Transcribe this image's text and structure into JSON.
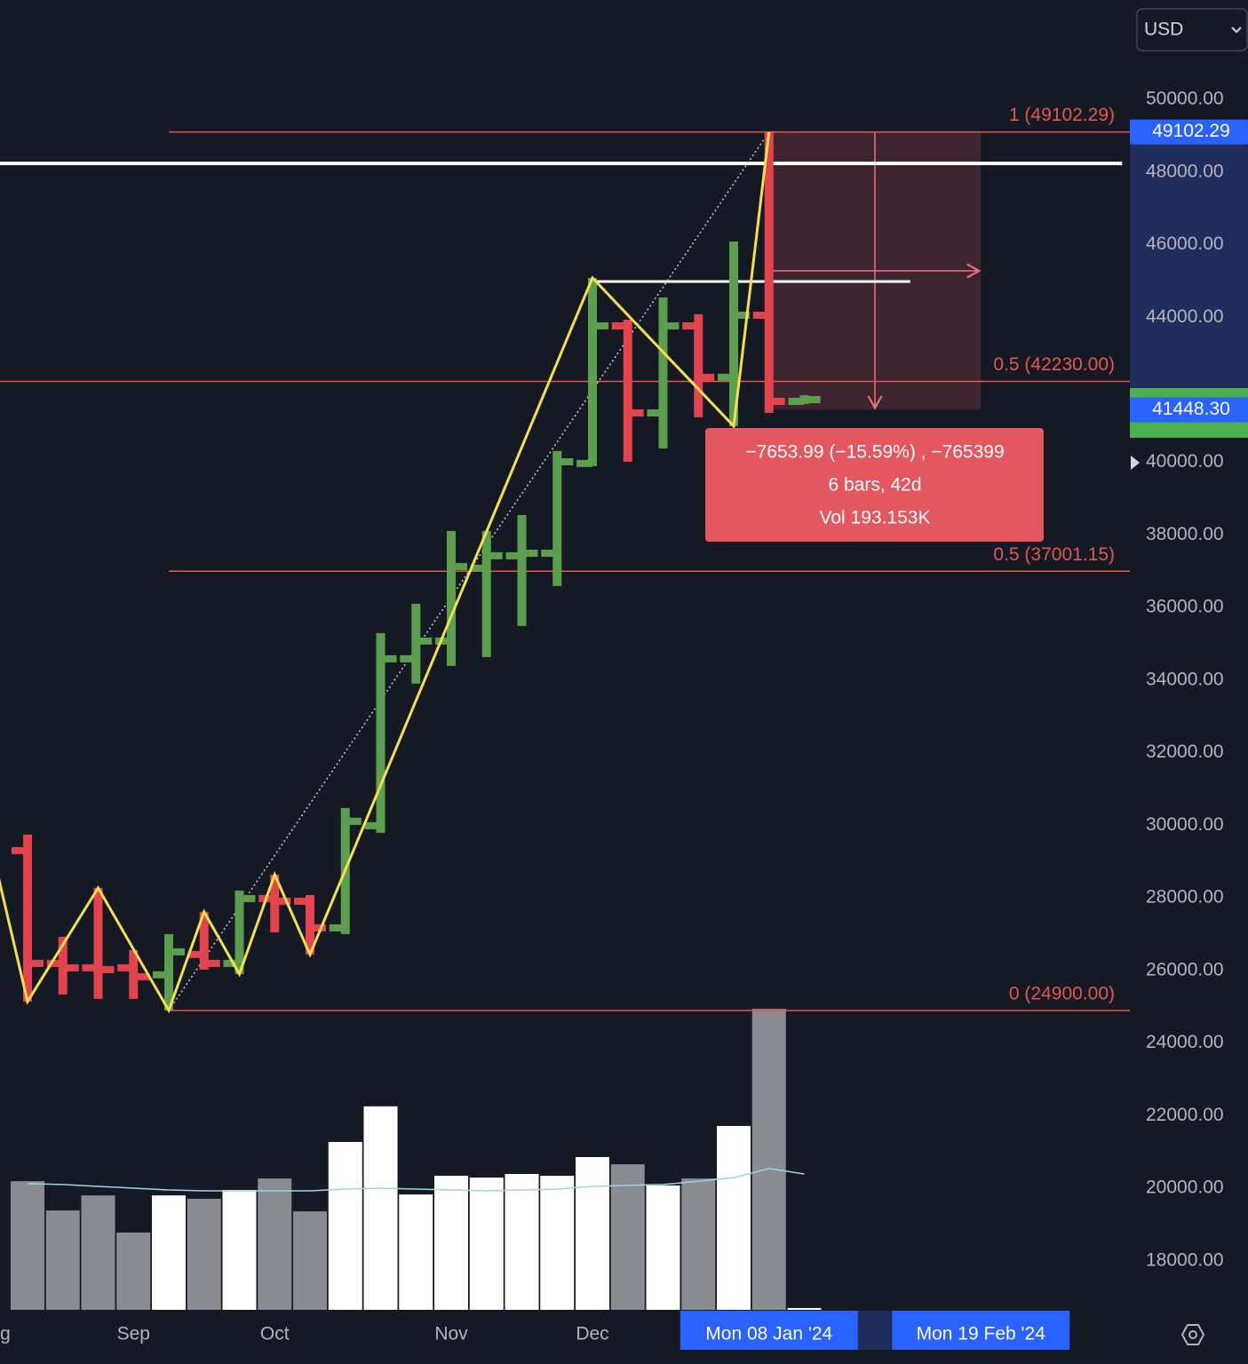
{
  "chart_data": {
    "type": "ohlc",
    "currency": "USD",
    "categories": [
      null,
      null,
      null,
      null,
      null,
      null,
      null,
      null,
      null,
      null,
      null,
      null,
      null,
      null,
      null,
      null,
      null,
      null,
      null,
      null,
      null,
      null,
      null
    ],
    "open": [
      29303,
      26196,
      26073,
      26073,
      25880,
      26441,
      26196,
      27982,
      27908,
      27174,
      29988,
      34587,
      35076,
      37083,
      37425,
      37498,
      39970,
      43761,
      41364,
      43761,
      42343,
      44055,
      41682
    ],
    "high": [
      29743,
      26930,
      28275,
      26563,
      27003,
      27615,
      28202,
      28642,
      28080,
      30477,
      35297,
      36104,
      38110,
      38110,
      38550,
      40312,
      45083,
      43933,
      44544,
      44082,
      46086,
      49102.29,
      41853
    ],
    "low": [
      25144,
      25339,
      25217,
      25217,
      24900,
      26024,
      25902,
      27052,
      26441,
      27003,
      29792,
      33902,
      34391,
      34636,
      35492,
      36593,
      39896,
      40018,
      40385,
      41242,
      40997,
      41364,
      41609
    ],
    "close": [
      26196,
      26073,
      26024,
      25829,
      26514,
      26196,
      27982,
      27908,
      27174,
      30110,
      34587,
      35076,
      37131,
      37425,
      37498,
      40018,
      43761,
      41364,
      43761,
      42343,
      44055,
      41682,
      41731
    ],
    "up_color": "#5b9e4d",
    "down_color": "#e2434d",
    "volume": [
      42.6,
      32.9,
      37.9,
      25.6,
      37.9,
      36.8,
      39.7,
      43.5,
      32.6,
      55.6,
      67.4,
      38.2,
      44.4,
      43.8,
      45.0,
      44.4,
      50.6,
      48.2,
      41.2,
      43.5,
      60.9,
      99.7,
      0.6
    ],
    "volume_ma": [
      41.8,
      41.5,
      40.9,
      40.3,
      39.7,
      39.4,
      39.4,
      39.4,
      39.4,
      40.0,
      40.3,
      40.0,
      39.7,
      39.4,
      39.7,
      40.0,
      40.9,
      41.2,
      41.5,
      42.6,
      43.8,
      46.8,
      45.0
    ],
    "volume_up_color": "#ffffff",
    "volume_down_color": "#8b8c91",
    "volume_ma_color": "#9fd4e6",
    "volume_ylim": [
      0,
      100
    ],
    "ylim": [
      16650,
      52740
    ],
    "yticks": [
      {
        "value": 18000,
        "label": "18000.00"
      },
      {
        "value": 20000,
        "label": "20000.00"
      },
      {
        "value": 22000,
        "label": "22000.00"
      },
      {
        "value": 24000,
        "label": "24000.00"
      },
      {
        "value": 26000,
        "label": "26000.00"
      },
      {
        "value": 28000,
        "label": "28000.00"
      },
      {
        "value": 30000,
        "label": "30000.00"
      },
      {
        "value": 32000,
        "label": "32000.00"
      },
      {
        "value": 34000,
        "label": "34000.00"
      },
      {
        "value": 36000,
        "label": "36000.00"
      },
      {
        "value": 38000,
        "label": "38000.00"
      },
      {
        "value": 40000,
        "label": "40000.00"
      },
      {
        "value": 44000,
        "label": "44000.00"
      },
      {
        "value": 46000,
        "label": "46000.00"
      },
      {
        "value": 48000,
        "label": "48000.00"
      },
      {
        "value": 50000,
        "label": "50000.00"
      }
    ],
    "xticks": [
      {
        "value": -0.65,
        "label": "g"
      },
      {
        "value": 3,
        "label": "Sep"
      },
      {
        "value": 7,
        "label": "Oct"
      },
      {
        "value": 12,
        "label": "Nov"
      },
      {
        "value": 16,
        "label": "Dec"
      }
    ],
    "crosshair_labels": [
      {
        "value": 21,
        "label": "Mon 08 Jan '24"
      },
      {
        "value": 27,
        "label": "Mon 19 Feb '24"
      }
    ],
    "zigzag": {
      "color": "#f3e04f",
      "x": [
        -1,
        0,
        2,
        4,
        5,
        6,
        7,
        8,
        16,
        20,
        21
      ],
      "values": [
        29303,
        25144,
        28275,
        24900,
        27615,
        25902,
        28642,
        26441,
        45083,
        40997,
        49102.29
      ]
    },
    "trend_line": {
      "x": [
        4,
        21
      ],
      "values": [
        24900,
        49102.29
      ]
    },
    "fib_color": "#e0584f",
    "fib_levels": [
      {
        "label": "1 (49102.29)",
        "value": 49102.29,
        "from": 4
      },
      {
        "label": "0.5 (42230.00)",
        "value": 42230,
        "from": -1
      },
      {
        "label": "0.5 (37001.15)",
        "value": 37001.15,
        "from": 4
      },
      {
        "label": "0 (24900.00)",
        "value": 24900,
        "from": 4
      }
    ],
    "horizontal_lines": [
      {
        "value": 48238,
        "x": [
          -1,
          31
        ]
      },
      {
        "value": 44985,
        "x": [
          16,
          25
        ]
      }
    ],
    "measure": {
      "x": [
        21,
        27
      ],
      "values": [
        49102.29,
        41448.3
      ],
      "lines": [
        "−7653.99 (−15.59%) , −765399",
        "6 bars, 42d",
        "Vol 193.153K"
      ]
    },
    "price_labels": [
      49102.29,
      {
        "value": 41448.3,
        "label": "41448.30"
      }
    ]
  }
}
